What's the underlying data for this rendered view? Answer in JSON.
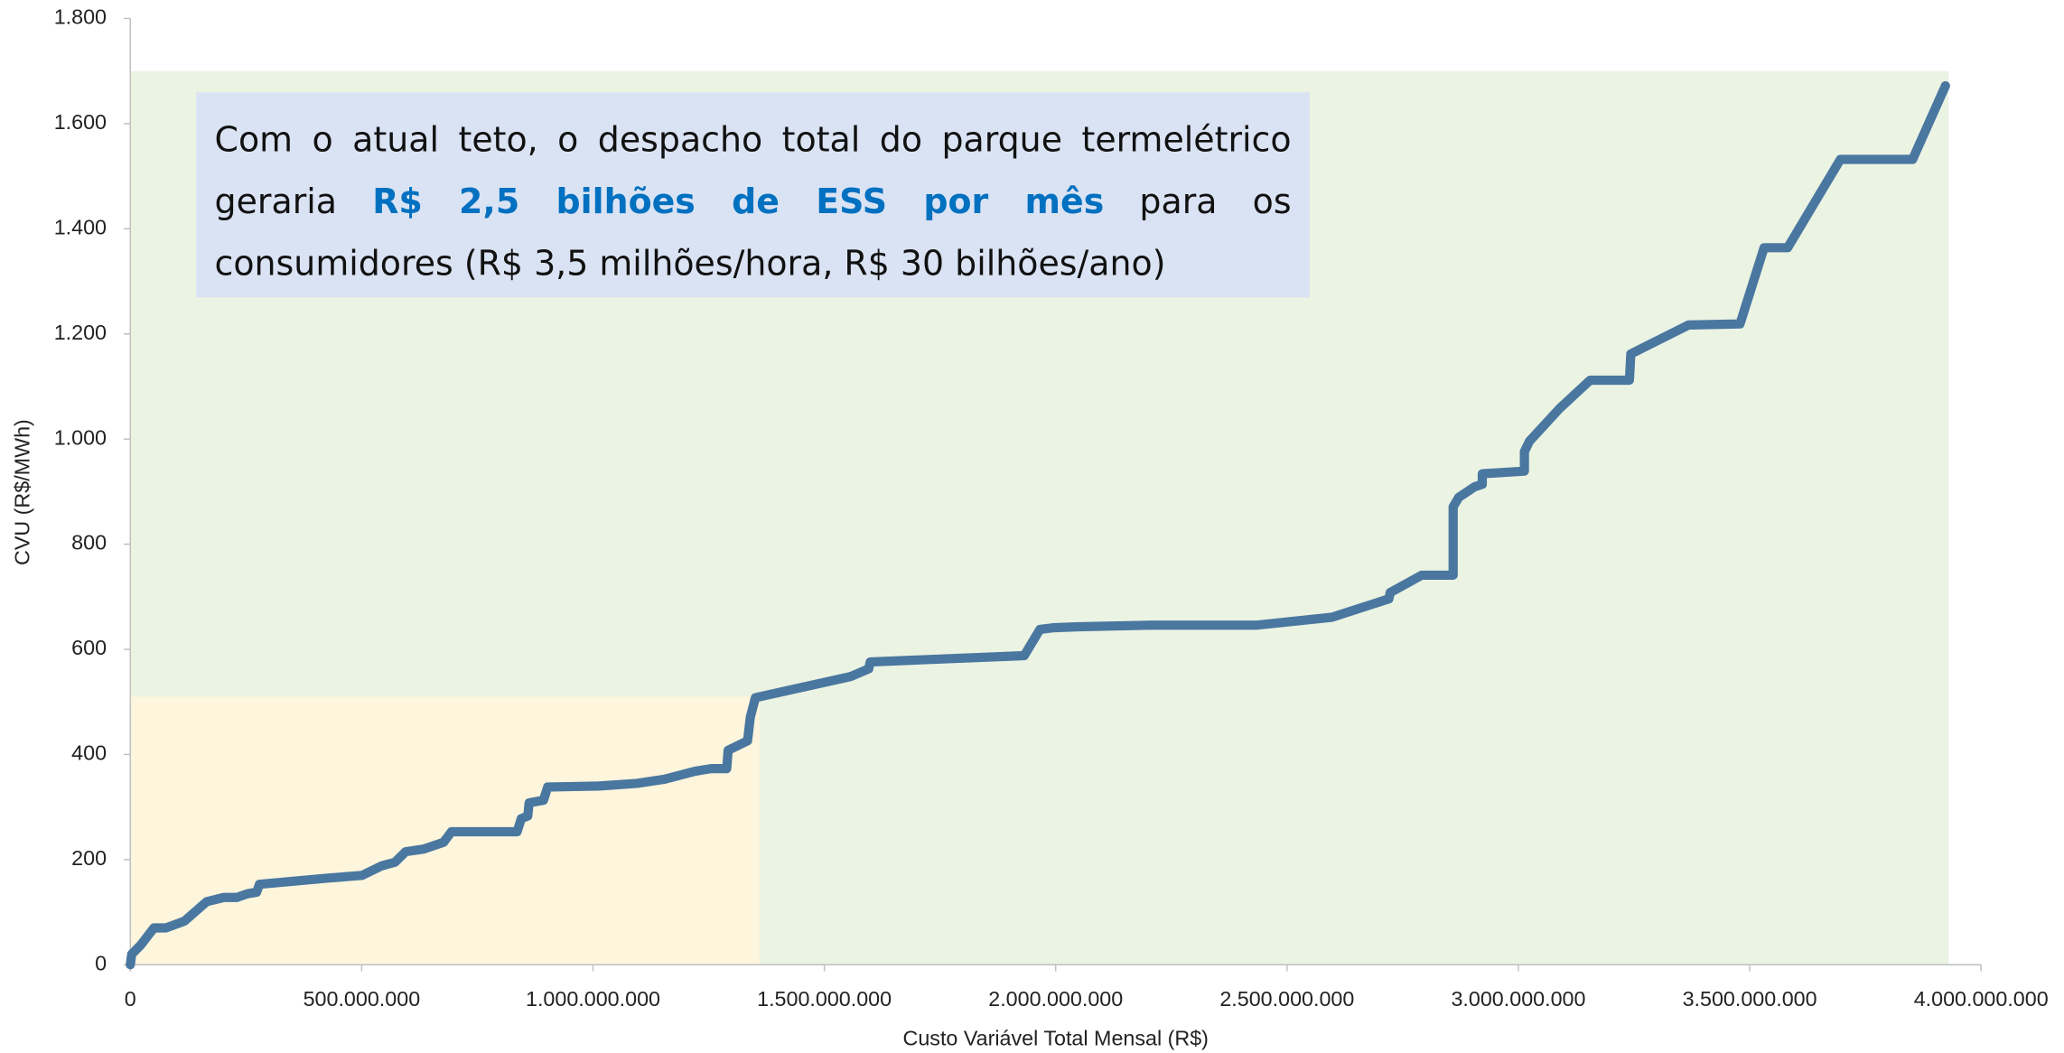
{
  "chart_data": {
    "type": "line",
    "x_label": "Custo Variável Total Mensal (R$)",
    "y_label": "CVU (R$/MWh)",
    "xlim": [
      0,
      4000000000
    ],
    "ylim": [
      0,
      1800
    ],
    "xticks": [
      0,
      {
        "value": 500000000,
        "label": "500.000.000"
      },
      {
        "value": 1000000000,
        "label": "1.000.000.000"
      },
      {
        "value": 1500000000,
        "label": "1.500.000.000"
      },
      {
        "value": 2000000000,
        "label": "2.000.000.000"
      },
      {
        "value": 2500000000,
        "label": "2.500.000.000"
      },
      {
        "value": 3000000000,
        "label": "3.000.000.000"
      },
      {
        "value": 3500000000,
        "label": "3.500.000.000"
      },
      {
        "value": 4000000000,
        "label": "4.000.000.000"
      }
    ],
    "yticks": [
      0,
      200,
      400,
      600,
      800,
      {
        "value": 1000,
        "label": "1.000"
      },
      {
        "value": 1200,
        "label": "1.200"
      },
      {
        "value": 1400,
        "label": "1.400"
      },
      {
        "value": 1600,
        "label": "1.600"
      },
      {
        "value": 1800,
        "label": "1.800"
      }
    ],
    "regions": [
      {
        "x": [
          0,
          3930000000
        ],
        "y": [
          0,
          1700
        ],
        "color": "#ebf3e3"
      },
      {
        "x": [
          0,
          1360000000
        ],
        "y": [
          0,
          510
        ],
        "color": "#fdf5dc"
      }
    ],
    "annotation": {
      "text_before": "Com o atual teto, o despacho total do parque termelétrico geraria ",
      "highlight": "R$ 2,5 bilhões de ESS por mês",
      "text_after": " para os consumidores (R$ 3,5 milhões/hora, R$ 30 bilhões/ano)",
      "highlight_color": "#0070c0",
      "background": "#dae3f3"
    },
    "series": [
      {
        "color": "#4a77a0",
        "x": [
          0,
          3000000,
          23000000,
          51000000,
          77000000,
          117000000,
          165000000,
          202000000,
          230000000,
          253000000,
          273000000,
          279000000,
          430000000,
          501000000,
          543000000,
          572000000,
          595000000,
          634000000,
          677000000,
          694000000,
          836000000,
          845000000,
          859000000,
          862000000,
          893000000,
          902000000,
          1013000000,
          1095000000,
          1155000000,
          1220000000,
          1255000000,
          1289000000,
          1292000000,
          1334000000,
          1340000000,
          1351000000,
          1556000000,
          1596000000,
          1599000000,
          1932000000,
          1966000000,
          1994000000,
          2051000000,
          2208000000,
          2435000000,
          2597000000,
          2720000000,
          2723000000,
          2791000000,
          2859000000,
          2859000000,
          2871000000,
          2888000000,
          2905000000,
          2922000000,
          2922000000,
          3013000000,
          3013000000,
          3024000000,
          3090000000,
          3155000000,
          3240000000,
          3243000000,
          3368000000,
          3479000000,
          3531000000,
          3582000000,
          3696000000,
          3852000000,
          3923000000
        ],
        "values": [
          0,
          20,
          38,
          70,
          70,
          83,
          120,
          128,
          128,
          135,
          138,
          153,
          165,
          170,
          188,
          195,
          215,
          220,
          233,
          253,
          253,
          278,
          283,
          308,
          313,
          338,
          340,
          345,
          353,
          368,
          373,
          373,
          408,
          426,
          471,
          508,
          548,
          563,
          576,
          588,
          638,
          641,
          643,
          646,
          646,
          661,
          696,
          708,
          741,
          741,
          871,
          889,
          899,
          909,
          914,
          934,
          939,
          976,
          996,
          1059,
          1112,
          1112,
          1162,
          1217,
          1219,
          1364,
          1364,
          1532,
          1532,
          1672
        ]
      }
    ]
  }
}
